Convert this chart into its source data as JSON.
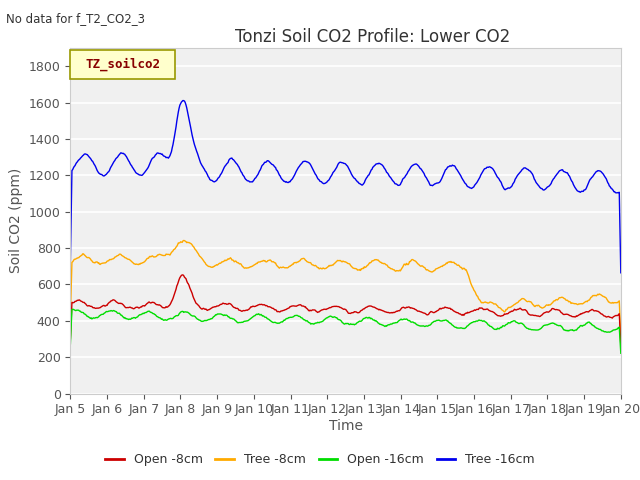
{
  "title": "Tonzi Soil CO2 Profile: Lower CO2",
  "subtitle": "No data for f_T2_CO2_3",
  "ylabel": "Soil CO2 (ppm)",
  "xlabel": "Time",
  "legend_label": "TZ_soilco2",
  "ylim": [
    0,
    1900
  ],
  "yticks": [
    0,
    200,
    400,
    600,
    800,
    1000,
    1200,
    1400,
    1600,
    1800
  ],
  "xtick_labels": [
    "Jan 5",
    "Jan 6",
    "Jan 7",
    "Jan 8",
    "Jan 9",
    "Jan 10",
    "Jan 11",
    "Jan 12",
    "Jan 13",
    "Jan 14",
    "Jan 15",
    "Jan 16",
    "Jan 17",
    "Jan 18",
    "Jan 19",
    "Jan 20"
  ],
  "series_colors": {
    "open_8cm": "#cc0000",
    "tree_8cm": "#ffaa00",
    "open_16cm": "#00dd00",
    "tree_16cm": "#0000ee"
  },
  "series_labels": [
    "Open -8cm",
    "Tree -8cm",
    "Open -16cm",
    "Tree -16cm"
  ],
  "fig_bg_color": "#ffffff",
  "plot_bg_color": "#f0f0f0",
  "grid_color": "#ffffff",
  "title_fontsize": 12,
  "axis_label_fontsize": 10,
  "tick_fontsize": 9
}
